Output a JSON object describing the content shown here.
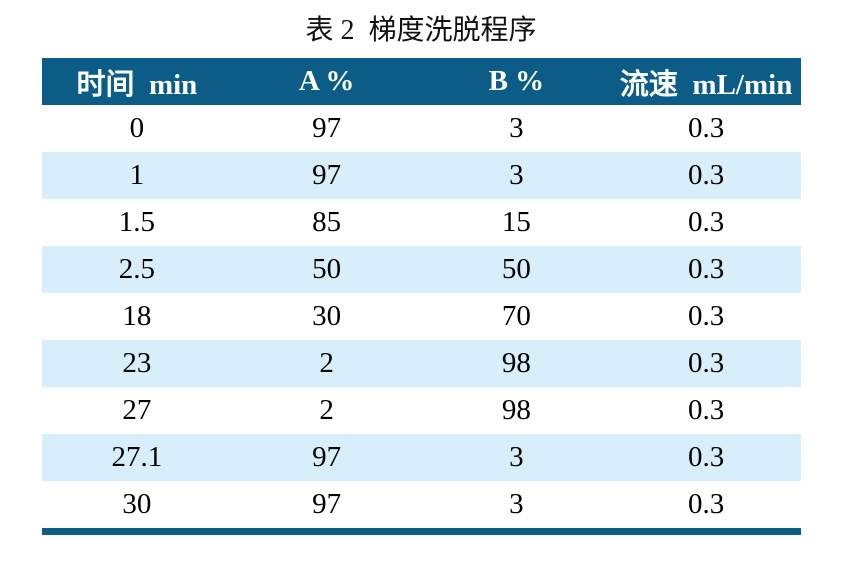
{
  "caption": "表 2  梯度洗脱程序",
  "colors": {
    "header_bg": "#0b5d87",
    "header_text": "#ffffff",
    "row_alt_bg": "#d8effb",
    "body_text": "#000000",
    "bottom_rule": "#0b5d87"
  },
  "chart_data": {
    "type": "table",
    "title": "表 2 梯度洗脱程序",
    "columns": [
      "时间  min",
      "A %",
      "B %",
      "流速  mL/min"
    ],
    "rows": [
      [
        "0",
        "97",
        "3",
        "0.3"
      ],
      [
        "1",
        "97",
        "3",
        "0.3"
      ],
      [
        "1.5",
        "85",
        "15",
        "0.3"
      ],
      [
        "2.5",
        "50",
        "50",
        "0.3"
      ],
      [
        "18",
        "30",
        "70",
        "0.3"
      ],
      [
        "23",
        "2",
        "98",
        "0.3"
      ],
      [
        "27",
        "2",
        "98",
        "0.3"
      ],
      [
        "27.1",
        "97",
        "3",
        "0.3"
      ],
      [
        "30",
        "97",
        "3",
        "0.3"
      ]
    ]
  }
}
